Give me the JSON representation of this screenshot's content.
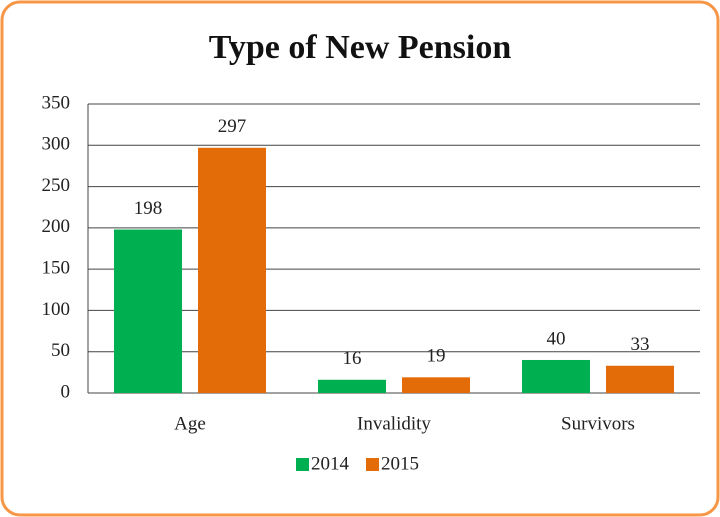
{
  "chart_data": {
    "type": "bar",
    "title": "Type of New Pension",
    "categories": [
      "Age",
      "Invalidity",
      "Survivors"
    ],
    "series": [
      {
        "name": "2014",
        "color": "#00b050",
        "values": [
          198,
          16,
          40
        ]
      },
      {
        "name": "2015",
        "color": "#e36c09",
        "values": [
          297,
          19,
          33
        ]
      }
    ],
    "ylim": [
      0,
      350
    ],
    "yticks": [
      0,
      50,
      100,
      150,
      200,
      250,
      300,
      350
    ],
    "grid": true,
    "legend": "bottom"
  }
}
